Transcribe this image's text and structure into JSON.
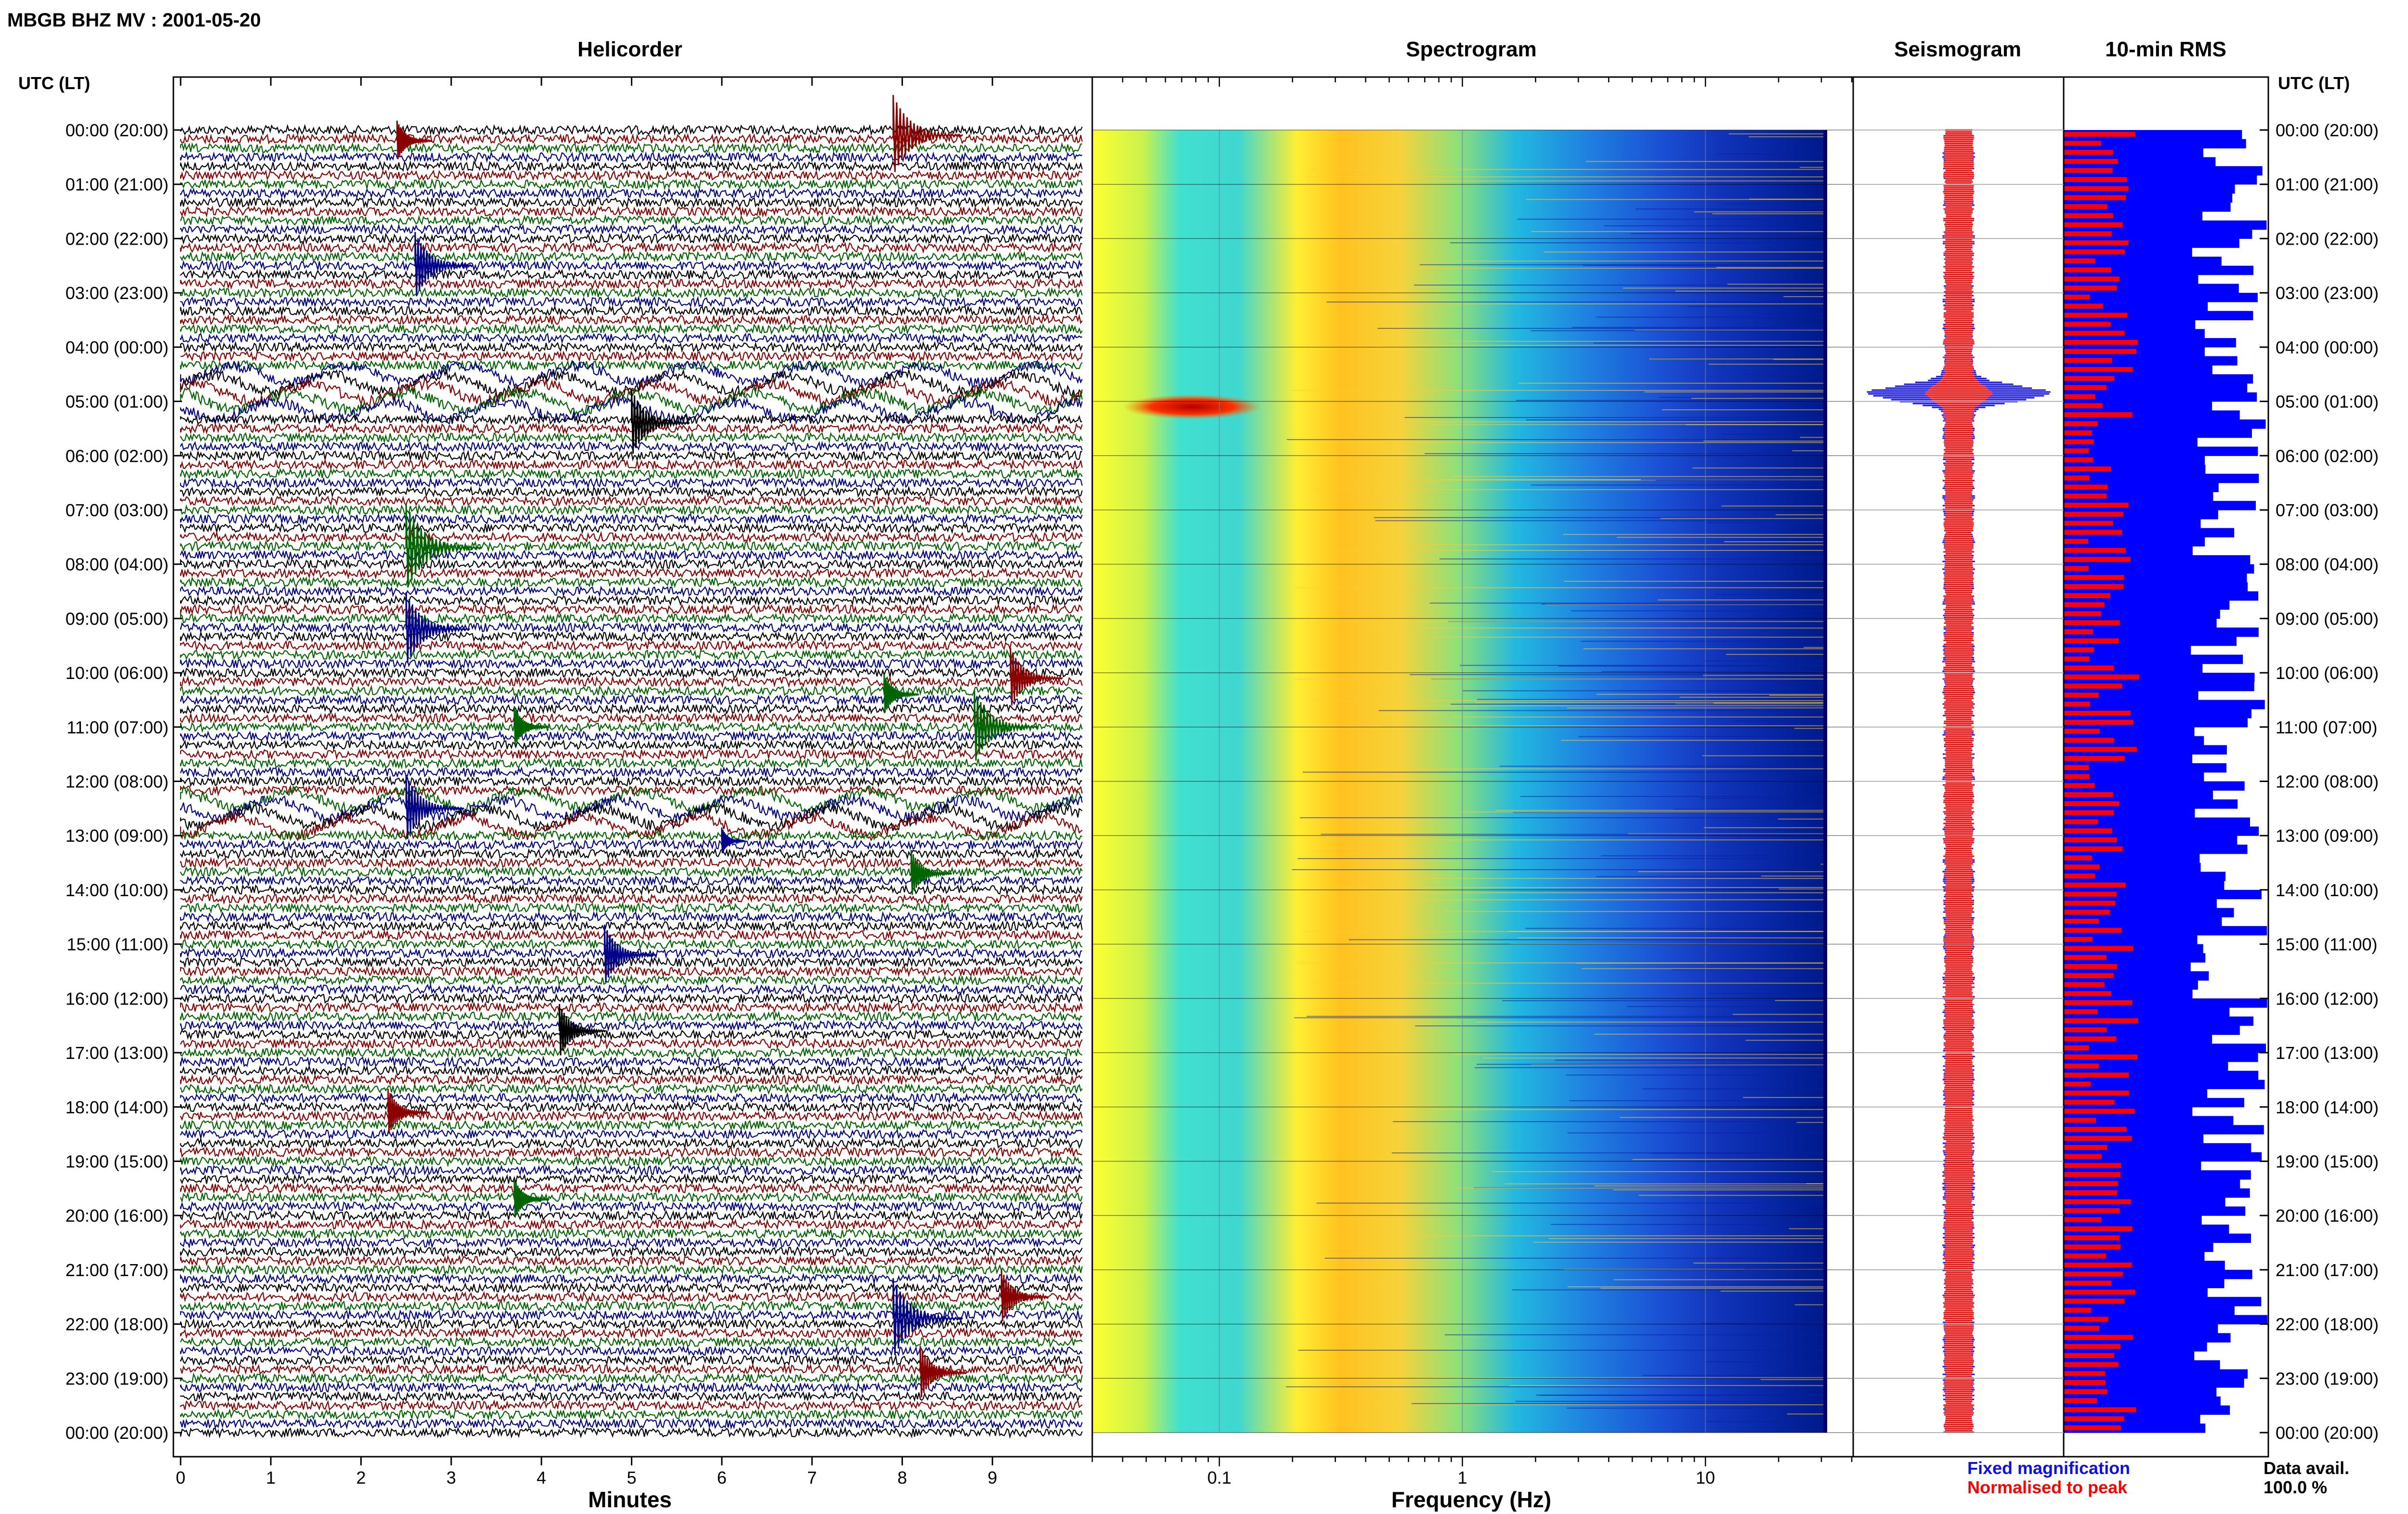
{
  "header": {
    "station_title": "MBGB BHZ MV : 2001-05-20",
    "utc_label": "UTC (LT)"
  },
  "panels": {
    "helicorder": "Helicorder",
    "spectrogram": "Spectrogram",
    "seismogram": "Seismogram",
    "rms": "10-min RMS"
  },
  "axes": {
    "helicorder_xlabel": "Minutes",
    "spectrogram_xlabel": "Frequency (Hz)",
    "minute_ticks": [
      "0",
      "1",
      "2",
      "3",
      "4",
      "5",
      "6",
      "7",
      "8",
      "9"
    ],
    "freq_ticks": [
      "0.1",
      "1",
      "10"
    ]
  },
  "time_labels": [
    "00:00 (20:00)",
    "01:00 (21:00)",
    "02:00 (22:00)",
    "03:00 (23:00)",
    "04:00 (00:00)",
    "05:00 (01:00)",
    "06:00 (02:00)",
    "07:00 (03:00)",
    "08:00 (04:00)",
    "09:00 (05:00)",
    "10:00 (06:00)",
    "11:00 (07:00)",
    "12:00 (08:00)",
    "13:00 (09:00)",
    "14:00 (10:00)",
    "15:00 (11:00)",
    "16:00 (12:00)",
    "17:00 (13:00)",
    "18:00 (14:00)",
    "19:00 (15:00)",
    "20:00 (16:00)",
    "21:00 (17:00)",
    "22:00 (18:00)",
    "23:00 (19:00)",
    "00:00 (20:00)"
  ],
  "legend": {
    "fixed": "Fixed magnification",
    "normalised": "Normalised to peak",
    "avail_label": "Data avail.",
    "avail_value": "100.0 %"
  },
  "colors": {
    "trace_cycle": [
      "#000000",
      "#8b0000",
      "#006400",
      "#00008b"
    ],
    "rms_fixed": "#0000ff",
    "rms_norm": "#ff0000"
  },
  "chart_data": {
    "type": "heatmap",
    "title": "MBGB BHZ MV : 2001-05-20",
    "helicorder": {
      "xlabel": "Minutes",
      "xlim": [
        0,
        10
      ],
      "rows_per_hour": 6,
      "hours": 24,
      "events": [
        {
          "hour": 0.2,
          "minute": 2.4,
          "size": 0.6
        },
        {
          "hour": 0.1,
          "minute": 7.9,
          "size": 1.2
        },
        {
          "hour": 2.5,
          "minute": 2.6,
          "size": 1.0
        },
        {
          "hour": 5.4,
          "minute": 5.0,
          "size": 1.0
        },
        {
          "hour": 7.7,
          "minute": 2.5,
          "size": 1.3
        },
        {
          "hour": 9.2,
          "minute": 2.5,
          "size": 1.1
        },
        {
          "hour": 10.1,
          "minute": 9.2,
          "size": 0.9
        },
        {
          "hour": 10.4,
          "minute": 7.8,
          "size": 0.6
        },
        {
          "hour": 11.0,
          "minute": 8.8,
          "size": 1.1
        },
        {
          "hour": 11.0,
          "minute": 3.7,
          "size": 0.6
        },
        {
          "hour": 12.5,
          "minute": 2.5,
          "size": 1.0
        },
        {
          "hour": 13.1,
          "minute": 6.0,
          "size": 0.4
        },
        {
          "hour": 13.7,
          "minute": 8.1,
          "size": 0.7
        },
        {
          "hour": 15.2,
          "minute": 4.7,
          "size": 0.9
        },
        {
          "hour": 16.6,
          "minute": 4.2,
          "size": 0.8
        },
        {
          "hour": 18.1,
          "minute": 2.3,
          "size": 0.7
        },
        {
          "hour": 19.7,
          "minute": 3.7,
          "size": 0.6
        },
        {
          "hour": 21.9,
          "minute": 7.9,
          "size": 1.2
        },
        {
          "hour": 21.5,
          "minute": 9.1,
          "size": 0.8
        },
        {
          "hour": 22.9,
          "minute": 8.2,
          "size": 0.8
        }
      ],
      "noisy_hours": [
        [
          4.5,
          5.3
        ],
        [
          12.2,
          12.9
        ]
      ]
    },
    "spectrogram": {
      "xlabel": "Frequency (Hz)",
      "xscale": "log",
      "xlim": [
        0.03,
        40
      ],
      "hours": 24,
      "event_hour": 5.1,
      "event_freq": [
        0.04,
        0.15
      ]
    },
    "seismogram": {
      "hours": 24,
      "event_hour": 4.85
    },
    "rms_10min": {
      "hours": 24,
      "rows_per_hour": 6,
      "relative_scale": [
        0,
        1
      ]
    }
  }
}
